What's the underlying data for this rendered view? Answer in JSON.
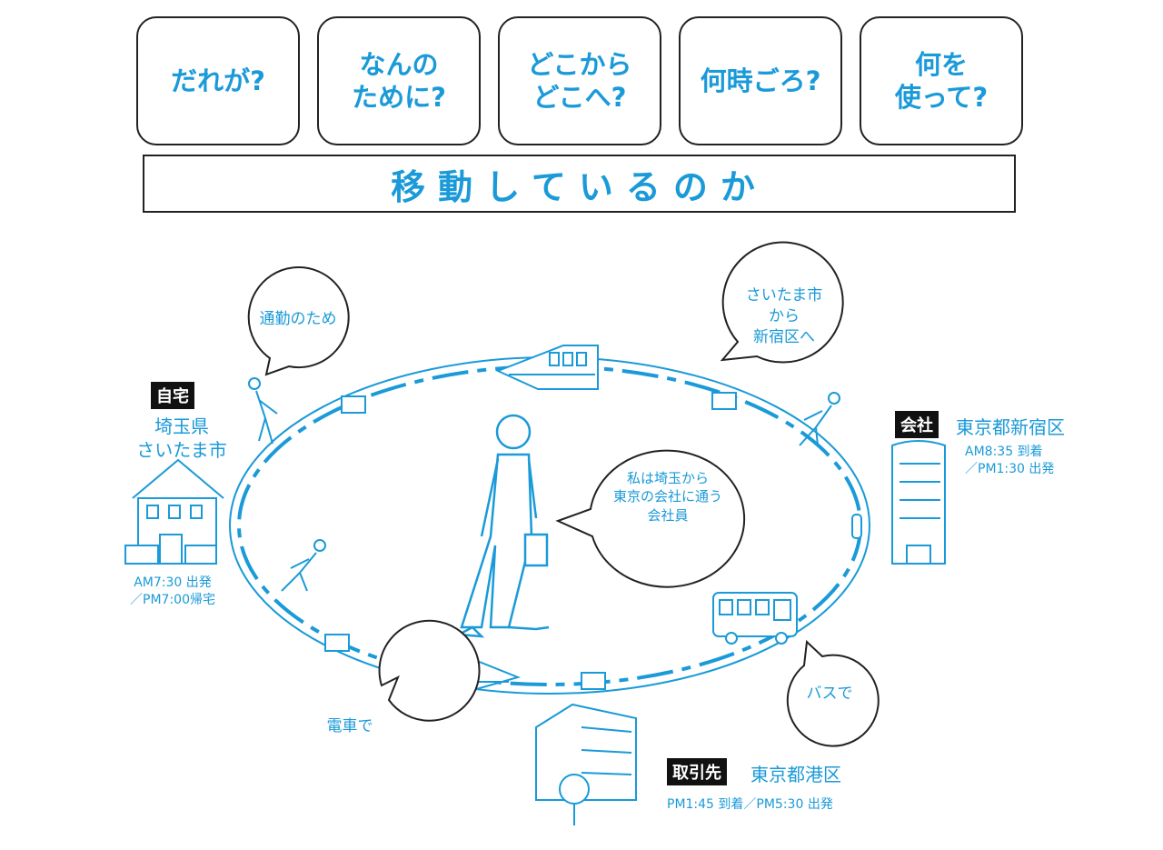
{
  "questions": [
    "だれが?",
    "なんの\nために?",
    "どこから\nどこへ?",
    "何時ごろ?",
    "何を\n使って?"
  ],
  "banner": "移動しているのか",
  "home": {
    "tag": "自宅",
    "place": "埼玉県\nさいたま市",
    "time": "AM7:30 出発\n／PM7:00帰宅"
  },
  "office": {
    "tag": "会社",
    "place": "東京都新宿区",
    "time": "AM8:35 到着\n／PM1:30 出発"
  },
  "client": {
    "tag": "取引先",
    "place": "東京都港区",
    "time": "PM1:45 到着／PM5:30 出発"
  },
  "bubbles": {
    "purpose": "通勤のため",
    "route": "さいたま市\nから\n新宿区へ",
    "who": "私は埼玉から\n東京の会社に通う\n会社員",
    "train": "電車で",
    "bus": "バスで"
  },
  "colors": {
    "accent": "#1a9ad8",
    "ink": "#222222"
  }
}
